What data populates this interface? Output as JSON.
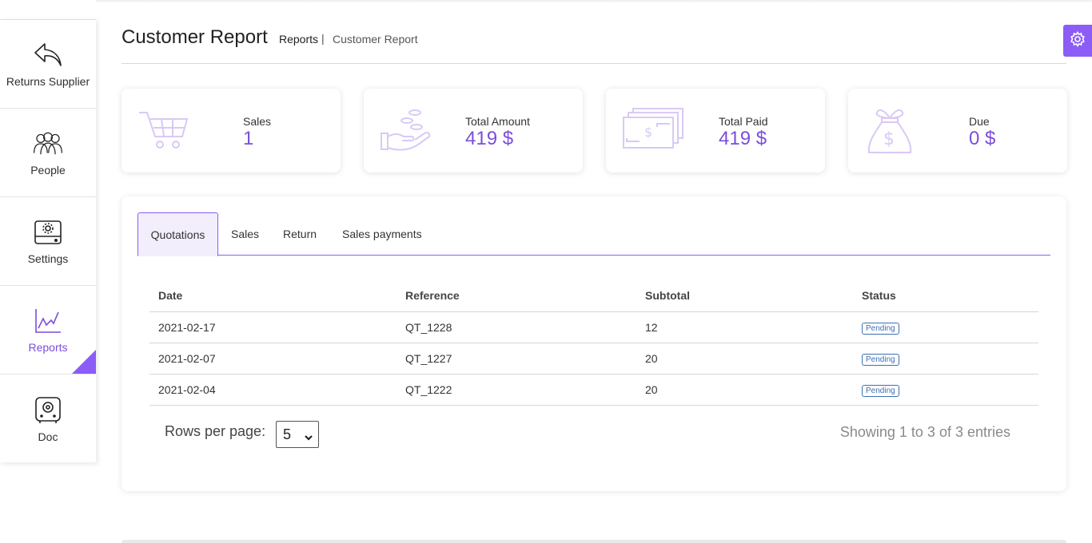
{
  "sidebar": {
    "items": [
      {
        "label": "Returns Supplier",
        "icon": "reply-arrow-icon",
        "active": false
      },
      {
        "label": "People",
        "icon": "people-group-icon",
        "active": false
      },
      {
        "label": "Settings",
        "icon": "settings-drive-icon",
        "active": false
      },
      {
        "label": "Reports",
        "icon": "line-chart-icon",
        "active": true
      },
      {
        "label": "Doc",
        "icon": "safe-box-icon",
        "active": false
      }
    ]
  },
  "header": {
    "title": "Customer Report",
    "breadcrumb": {
      "parent": "Reports",
      "separator": "|",
      "current": "Customer Report"
    }
  },
  "stats": [
    {
      "label": "Sales",
      "value": "1",
      "icon": "shopping-cart-icon"
    },
    {
      "label": "Total Amount",
      "value": "419 $",
      "icon": "hand-coins-icon"
    },
    {
      "label": "Total Paid",
      "value": "419 $",
      "icon": "cash-stack-icon"
    },
    {
      "label": "Due",
      "value": "0 $",
      "icon": "money-bag-icon"
    }
  ],
  "tabs": [
    {
      "label": "Quotations",
      "active": true
    },
    {
      "label": "Sales",
      "active": false
    },
    {
      "label": "Return",
      "active": false
    },
    {
      "label": "Sales payments",
      "active": false
    }
  ],
  "table": {
    "columns": [
      "Date",
      "Reference",
      "Subtotal",
      "Status"
    ],
    "rows": [
      {
        "date": "2021-02-17",
        "reference": "QT_1228",
        "subtotal": "12",
        "status": "Pending"
      },
      {
        "date": "2021-02-07",
        "reference": "QT_1227",
        "subtotal": "20",
        "status": "Pending"
      },
      {
        "date": "2021-02-04",
        "reference": "QT_1222",
        "subtotal": "20",
        "status": "Pending"
      }
    ]
  },
  "pagination": {
    "rows_per_page_label": "Rows per page:",
    "rows_per_page_value": "5",
    "showing_text": "Showing 1 to 3 of 3 entries"
  },
  "colors": {
    "accent": "#8b5cf6",
    "accent_text": "#7c4ddc",
    "icon_light": "#d9c9f5",
    "badge": "#3d6fb5"
  }
}
